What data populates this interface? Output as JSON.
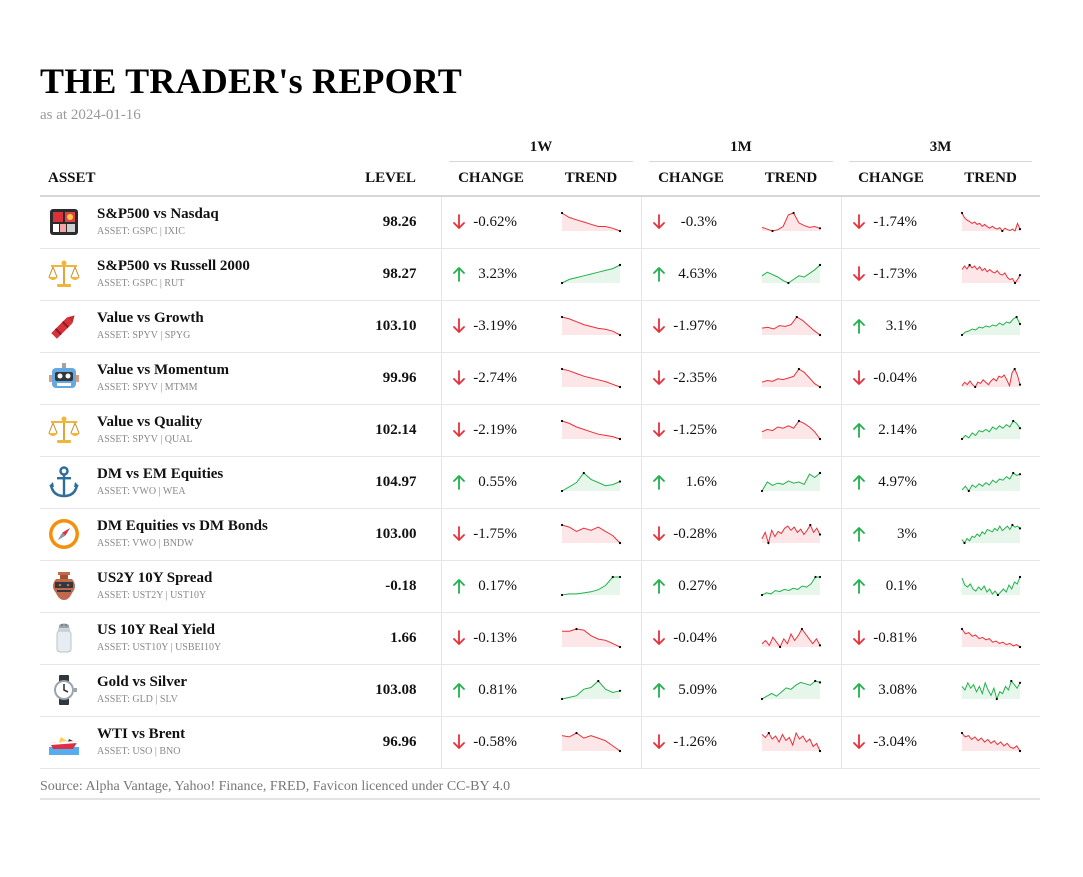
{
  "report": {
    "title": "THE TRADER's REPORT",
    "subtitle": "as at 2024-01-16",
    "source": "Source: Alpha Vantage, Yahoo! Finance, FRED, Favicon licenced under CC-BY 4.0"
  },
  "headers": {
    "asset": "ASSET",
    "level": "LEVEL",
    "groups": [
      "1W",
      "1M",
      "3M"
    ],
    "change": "CHANGE",
    "trend": "TREND"
  },
  "colors": {
    "up": "#22b14c",
    "down": "#e8303a",
    "up_fill": "#e6f6ea",
    "down_fill": "#fde6e7"
  },
  "rows": [
    {
      "name": "S&P500 vs Nasdaq",
      "tickers": "ASSET: GSPC | IXIC",
      "icon": "bento-box-icon",
      "level": "98.26",
      "w1": {
        "dir": "down",
        "val": "-0.62%"
      },
      "m1": {
        "dir": "down",
        "val": "-0.3%"
      },
      "m3": {
        "dir": "down",
        "val": "-1.74%"
      }
    },
    {
      "name": "S&P500 vs Russell 2000",
      "tickers": "ASSET: GSPC | RUT",
      "icon": "balance-scale-icon",
      "level": "98.27",
      "w1": {
        "dir": "up",
        "val": "3.23%"
      },
      "m1": {
        "dir": "up",
        "val": "4.63%"
      },
      "m3": {
        "dir": "down",
        "val": "-1.73%"
      }
    },
    {
      "name": "Value vs Growth",
      "tickers": "ASSET: SPYV | SPYG",
      "icon": "crayon-icon",
      "level": "103.10",
      "w1": {
        "dir": "down",
        "val": "-3.19%"
      },
      "m1": {
        "dir": "down",
        "val": "-1.97%"
      },
      "m3": {
        "dir": "up",
        "val": "3.1%"
      }
    },
    {
      "name": "Value vs Momentum",
      "tickers": "ASSET: SPYV | MTMM",
      "icon": "robot-icon",
      "level": "99.96",
      "w1": {
        "dir": "down",
        "val": "-2.74%"
      },
      "m1": {
        "dir": "down",
        "val": "-2.35%"
      },
      "m3": {
        "dir": "down",
        "val": "-0.04%"
      }
    },
    {
      "name": "Value vs Quality",
      "tickers": "ASSET: SPYV | QUAL",
      "icon": "balance-scale-icon",
      "level": "102.14",
      "w1": {
        "dir": "down",
        "val": "-2.19%"
      },
      "m1": {
        "dir": "down",
        "val": "-1.25%"
      },
      "m3": {
        "dir": "up",
        "val": "2.14%"
      }
    },
    {
      "name": "DM vs EM Equities",
      "tickers": "ASSET: VWO | WEA",
      "icon": "anchor-icon",
      "level": "104.97",
      "w1": {
        "dir": "up",
        "val": "0.55%"
      },
      "m1": {
        "dir": "up",
        "val": "1.6%"
      },
      "m3": {
        "dir": "up",
        "val": "4.97%"
      }
    },
    {
      "name": "DM Equities vs DM Bonds",
      "tickers": "ASSET: VWO | BNDW",
      "icon": "compass-icon",
      "level": "103.00",
      "w1": {
        "dir": "down",
        "val": "-1.75%"
      },
      "m1": {
        "dir": "down",
        "val": "-0.28%"
      },
      "m3": {
        "dir": "up",
        "val": "3%"
      }
    },
    {
      "name": "US2Y 10Y Spread",
      "tickers": "ASSET: UST2Y | UST10Y",
      "icon": "amphora-icon",
      "level": "-0.18",
      "w1": {
        "dir": "up",
        "val": "0.17%"
      },
      "m1": {
        "dir": "up",
        "val": "0.27%"
      },
      "m3": {
        "dir": "up",
        "val": "0.1%"
      }
    },
    {
      "name": "US 10Y Real Yield",
      "tickers": "ASSET: UST10Y | USBEI10Y",
      "icon": "salt-shaker-icon",
      "level": "1.66",
      "w1": {
        "dir": "down",
        "val": "-0.13%"
      },
      "m1": {
        "dir": "down",
        "val": "-0.04%"
      },
      "m3": {
        "dir": "down",
        "val": "-0.81%"
      }
    },
    {
      "name": "Gold vs Silver",
      "tickers": "ASSET: GLD | SLV",
      "icon": "watch-icon",
      "level": "103.08",
      "w1": {
        "dir": "up",
        "val": "0.81%"
      },
      "m1": {
        "dir": "up",
        "val": "5.09%"
      },
      "m3": {
        "dir": "up",
        "val": "3.08%"
      }
    },
    {
      "name": "WTI vs Brent",
      "tickers": "ASSET: USO | BNO",
      "icon": "speedboat-icon",
      "level": "96.96",
      "w1": {
        "dir": "down",
        "val": "-0.58%"
      },
      "m1": {
        "dir": "down",
        "val": "-1.26%"
      },
      "m3": {
        "dir": "down",
        "val": "-3.04%"
      }
    }
  ],
  "sparklines": [
    {
      "w1": [
        8,
        7,
        6.5,
        6,
        5.5,
        5,
        5,
        4.6,
        4
      ],
      "m1": [
        5,
        4.6,
        4.2,
        4.5,
        5.2,
        7.8,
        8.2,
        6,
        5.4,
        5,
        5.2,
        4.8
      ],
      "m3": [
        8,
        7,
        6.5,
        6.2,
        5.8,
        6.1,
        5.6,
        5.8,
        5.2,
        5.6,
        5.1,
        4.8,
        5.2,
        4.8,
        4.6,
        4.9,
        4.2,
        4.8,
        4.5,
        4.3,
        4.6,
        4.2,
        5.8,
        4.6
      ]
    },
    {
      "w1": [
        3,
        3.8,
        4.2,
        4.6,
        5,
        5.4,
        5.8,
        6.2,
        7
      ],
      "m1": [
        4.4,
        5,
        4.6,
        4.2,
        3.6,
        3.2,
        3.8,
        4.4,
        4.2,
        4.8,
        5.4,
        6.2
      ],
      "m3": [
        6.2,
        6.8,
        6.3,
        7,
        6.5,
        6.8,
        6.2,
        6.7,
        6,
        6.4,
        5.8,
        6.2,
        5.8,
        5.6,
        6,
        5.4,
        5.2,
        5.6,
        4.8,
        4.4,
        4.6,
        3.8,
        4.4,
        5.2
      ]
    },
    {
      "w1": [
        8,
        7.6,
        7,
        6.4,
        6,
        5.6,
        5.4,
        5,
        4.2
      ],
      "m1": [
        5,
        5.2,
        4.8,
        5.6,
        5.4,
        5.8,
        7.6,
        6.8,
        5.6,
        4.4,
        3.4
      ],
      "m3": [
        3.2,
        3.8,
        4,
        4.4,
        4.2,
        4.8,
        4.6,
        5,
        4.8,
        5.2,
        5,
        5.6,
        5.2,
        5.8,
        5.6,
        6.4,
        6.8,
        5.4
      ]
    },
    {
      "w1": [
        8,
        7.6,
        7,
        6.4,
        6,
        5.6,
        5.2,
        4.6,
        4
      ],
      "m1": [
        4.6,
        5,
        4.8,
        5.4,
        5.2,
        5.6,
        6,
        7.8,
        7,
        5.6,
        4.2,
        3.4
      ],
      "m3": [
        4.4,
        5,
        4.6,
        5.2,
        4.6,
        4.2,
        5,
        4.8,
        5.4,
        5,
        4.6,
        5.2,
        5.6,
        5.2,
        6,
        5.8,
        6.2,
        5.4,
        4.4,
        6.6,
        7.2,
        6.2,
        4.6
      ]
    },
    {
      "w1": [
        7.6,
        7.2,
        6.6,
        6.2,
        5.8,
        5.4,
        5.2,
        5,
        4.6
      ],
      "m1": [
        4.6,
        5,
        4.8,
        5.4,
        5.2,
        5.6,
        5.2,
        6.4,
        6,
        5.4,
        4.6,
        3.4
      ],
      "m3": [
        3.6,
        4.2,
        3.8,
        4.6,
        4.2,
        5,
        4.8,
        5.2,
        4.8,
        5.6,
        5.2,
        5.8,
        5.4,
        6,
        5.6,
        6.6,
        6.2,
        5.4
      ]
    },
    {
      "w1": [
        3.6,
        4.4,
        5.2,
        7,
        5.8,
        5.2,
        4.6,
        4.8,
        5.4
      ],
      "m1": [
        3.6,
        5.2,
        4.6,
        5,
        4.8,
        5.4,
        5,
        5.2,
        4.8,
        6.6,
        6,
        6.8
      ],
      "m3": [
        3.8,
        4.4,
        3.6,
        4.6,
        4.2,
        4.8,
        4.4,
        5,
        4.6,
        5.4,
        5,
        5.6,
        5.4,
        6,
        5.6,
        6.6,
        6.2,
        6.4
      ]
    },
    {
      "w1": [
        6.6,
        6.2,
        5.4,
        6,
        5.6,
        6.2,
        5.4,
        4.6,
        3.2
      ],
      "m1": [
        4.2,
        5.4,
        3.4,
        5.8,
        4.6,
        5.6,
        5.2,
        6.2,
        6.6,
        5.8,
        6.4,
        5.4,
        6,
        5,
        5.8,
        6.8,
        5.4,
        6.2,
        5
      ],
      "m3": [
        4.2,
        3.6,
        4.4,
        4,
        4.8,
        4.6,
        5.2,
        4.8,
        5.6,
        5.2,
        6,
        5.8,
        5.6,
        6.2,
        5.8,
        6.6,
        5.8,
        6.2,
        6.6,
        6,
        6.8,
        6.4,
        6.6,
        6.2
      ]
    },
    {
      "w1": [
        3.6,
        3.8,
        3.8,
        4,
        4.2,
        4.6,
        5.4,
        7,
        7
      ],
      "m1": [
        3.6,
        4,
        3.8,
        4.4,
        4.2,
        4.6,
        4.4,
        4.8,
        4.6,
        5.2,
        5,
        5.6,
        6.8,
        6.8
      ],
      "m3": [
        7,
        5.6,
        5.2,
        5.8,
        4.8,
        4.4,
        5.2,
        4.6,
        5.4,
        4.2,
        4.8,
        3.8,
        4.4,
        3.6,
        4.2,
        4.8,
        4.2,
        5.6,
        4.8,
        6.2,
        5.8,
        7.2
      ]
    },
    {
      "w1": [
        6.2,
        6.2,
        6.6,
        6.4,
        5.4,
        4.8,
        4.6,
        4,
        3.4
      ],
      "m1": [
        4.6,
        5,
        4.4,
        5.4,
        4.8,
        4.2,
        5.2,
        4.6,
        5.8,
        5,
        5.6,
        6.4,
        5.8,
        5.2,
        4.6,
        5.2,
        4.4
      ],
      "m3": [
        7,
        6.2,
        6.4,
        5.8,
        6,
        5.4,
        5.6,
        5.2,
        5.4,
        4.8,
        5,
        4.6,
        4.8,
        4.4,
        4.6,
        4.2,
        4.4,
        4
      ]
    },
    {
      "w1": [
        4.4,
        4.6,
        4.8,
        5.6,
        5.8,
        6.6,
        5.6,
        5.2,
        5.4
      ],
      "m1": [
        3.8,
        4.2,
        4.6,
        4.2,
        4.8,
        5.4,
        5.2,
        5.8,
        6.2,
        6,
        5.8,
        6.4,
        6.2
      ],
      "m3": [
        5.6,
        5.2,
        6,
        5.4,
        5.8,
        5,
        5.6,
        4.8,
        6,
        5.2,
        4.6,
        5.4,
        4.2,
        5,
        4.8,
        5.6,
        5.2,
        6.2,
        5.8,
        5.4,
        6
      ]
    },
    {
      "w1": [
        6.6,
        6.4,
        7,
        6.2,
        6.6,
        6.2,
        5.8,
        5,
        4.2
      ],
      "m1": [
        6.4,
        6,
        6.6,
        5.8,
        6.2,
        5.4,
        6.4,
        5.6,
        6,
        5,
        6.6,
        5.8,
        6.2,
        5.4,
        5.8,
        4.8,
        5.2,
        4.2
      ],
      "m3": [
        7,
        6.4,
        6.6,
        6,
        6.4,
        5.8,
        6.2,
        5.6,
        6,
        5.4,
        5.8,
        5.2,
        5.6,
        5,
        5.4,
        4.8,
        4.6,
        5,
        4.2
      ]
    }
  ]
}
